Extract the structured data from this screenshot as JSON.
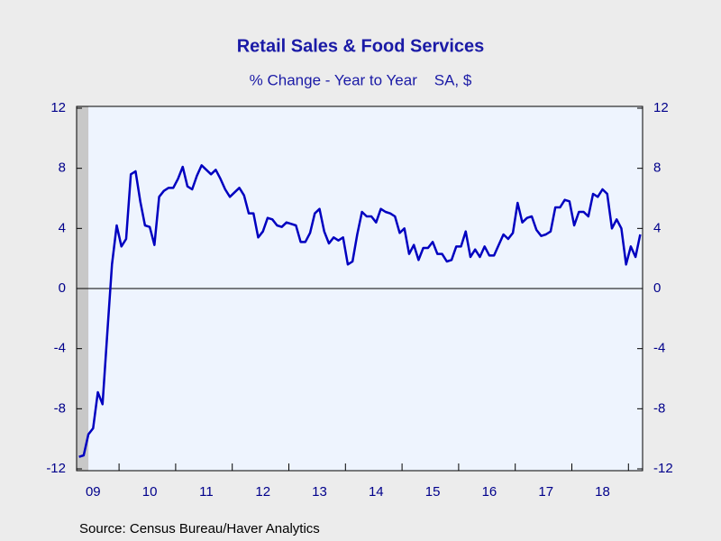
{
  "chart_data": {
    "type": "line",
    "title": "Retail Sales & Food Services",
    "subtitle": "% Change - Year to Year    SA, $",
    "source": "Source:  Census Bureau/Haver Analytics",
    "categories": [
      null,
      null,
      null,
      "09",
      null,
      null,
      null,
      null,
      null,
      null,
      null,
      null,
      null,
      null,
      null,
      "10",
      null,
      null,
      null,
      null,
      null,
      null,
      null,
      null,
      null,
      null,
      null,
      "11",
      null,
      null,
      null,
      null,
      null,
      null,
      null,
      null,
      null,
      null,
      null,
      "12",
      null,
      null,
      null,
      null,
      null,
      null,
      null,
      null,
      null,
      null,
      null,
      "13",
      null,
      null,
      null,
      null,
      null,
      null,
      null,
      null,
      null,
      null,
      null,
      "14",
      null,
      null,
      null,
      null,
      null,
      null,
      null,
      null,
      null,
      null,
      null,
      "15",
      null,
      null,
      null,
      null,
      null,
      null,
      null,
      null,
      null,
      null,
      null,
      "16",
      null,
      null,
      null,
      null,
      null,
      null,
      null,
      null,
      null,
      null,
      null,
      "17",
      null,
      null,
      null,
      null,
      null,
      null,
      null,
      null,
      null,
      null,
      null,
      "18",
      null,
      null,
      null,
      null,
      null,
      null,
      null,
      null
    ],
    "series": [
      {
        "color": "#0000c0",
        "values": [
          -11.2,
          -11.1,
          -9.7,
          -9.3,
          -6.9,
          -7.7,
          -3.0,
          1.6,
          4.2,
          2.8,
          3.3,
          7.6,
          7.8,
          5.8,
          4.2,
          4.1,
          2.9,
          6.1,
          6.5,
          6.7,
          6.7,
          7.3,
          8.1,
          6.8,
          6.6,
          7.5,
          8.2,
          7.9,
          7.6,
          7.9,
          7.3,
          6.6,
          6.1,
          6.4,
          6.7,
          6.2,
          5.0,
          5.0,
          3.4,
          3.8,
          4.7,
          4.6,
          4.2,
          4.1,
          4.4,
          4.3,
          4.2,
          3.1,
          3.1,
          3.7,
          5.0,
          5.3,
          3.8,
          3.0,
          3.4,
          3.2,
          3.4,
          1.6,
          1.8,
          3.6,
          5.1,
          4.8,
          4.8,
          4.4,
          5.3,
          5.1,
          5.0,
          4.8,
          3.7,
          4.0,
          2.3,
          2.9,
          1.9,
          2.7,
          2.7,
          3.1,
          2.3,
          2.3,
          1.8,
          1.9,
          2.8,
          2.8,
          3.8,
          2.1,
          2.6,
          2.1,
          2.8,
          2.2,
          2.2,
          2.9,
          3.6,
          3.3,
          3.7,
          5.7,
          4.4,
          4.7,
          4.8,
          3.9,
          3.5,
          3.6,
          3.8,
          5.4,
          5.4,
          5.9,
          5.8,
          4.2,
          5.1,
          5.1,
          4.8,
          6.3,
          6.1,
          6.6,
          6.3,
          4.0,
          4.6,
          4.0,
          1.6,
          2.8,
          2.1,
          3.6
        ]
      }
    ],
    "ylim": [
      -12,
      12
    ],
    "yticks": [
      -12,
      -8,
      -4,
      0,
      4,
      8,
      12
    ]
  }
}
